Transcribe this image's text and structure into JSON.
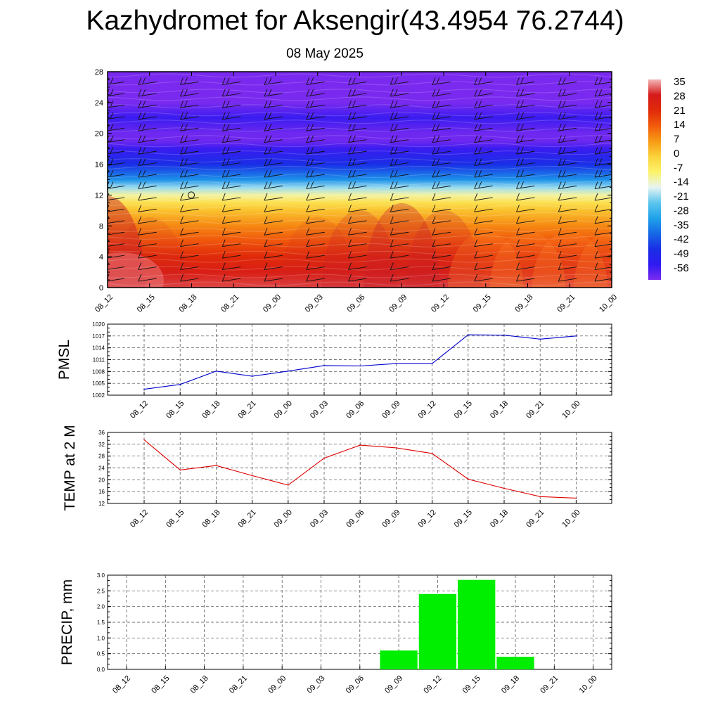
{
  "title": "Kazhydromet for Aksengir(43.4954 76.2744)",
  "date": "08 May 2025",
  "time_labels": [
    "08_12",
    "08_15",
    "08_18",
    "08_21",
    "09_00",
    "09_03",
    "09_06",
    "09_09",
    "09_12",
    "09_15",
    "09_18",
    "09_21",
    "10_00"
  ],
  "colorbar": {
    "labels": [
      "35",
      "28",
      "21",
      "14",
      "7",
      "0",
      "-7",
      "-14",
      "-21",
      "-28",
      "-35",
      "-42",
      "-49",
      "-56"
    ],
    "stops": [
      {
        "v": 35,
        "c": "#f3b7b7"
      },
      {
        "v": 28,
        "c": "#d61a1a"
      },
      {
        "v": 21,
        "c": "#e02a0a"
      },
      {
        "v": 14,
        "c": "#f25b0c"
      },
      {
        "v": 7,
        "c": "#f79a14"
      },
      {
        "v": 0,
        "c": "#fbd23a"
      },
      {
        "v": -7,
        "c": "#fcf36a"
      },
      {
        "v": -14,
        "c": "#e6f4f2"
      },
      {
        "v": -21,
        "c": "#5cc6ee"
      },
      {
        "v": -28,
        "c": "#1fa2ea"
      },
      {
        "v": -35,
        "c": "#1668e6"
      },
      {
        "v": -42,
        "c": "#1a2ee6"
      },
      {
        "v": -49,
        "c": "#2e1af0"
      },
      {
        "v": -56,
        "c": "#7a2aef"
      }
    ]
  },
  "chart_data": [
    {
      "type": "heatmap",
      "title": "Kazhydromet for Aksengir(43.4954 76.2744)",
      "subtitle": "08 May 2025",
      "x": [
        "08_12",
        "08_15",
        "08_18",
        "08_21",
        "09_00",
        "09_03",
        "09_06",
        "09_09",
        "09_12",
        "09_15",
        "09_18",
        "09_21",
        "10_00"
      ],
      "y_ticks": [
        0,
        4,
        8,
        12,
        16,
        20,
        24,
        28
      ],
      "ylim": [
        0,
        28
      ],
      "value_range": [
        -56,
        35
      ],
      "levels": [
        0,
        2,
        4,
        6,
        8,
        10,
        11,
        12,
        13,
        14,
        16,
        18,
        19,
        20,
        22,
        24,
        26,
        28
      ],
      "profile": [
        30,
        26,
        21,
        15,
        9,
        2,
        -3,
        -10,
        -18,
        -30,
        -42,
        -50,
        -55,
        -55,
        -50,
        -57,
        -60,
        -60
      ],
      "surface_anomaly": [
        4,
        1,
        0,
        0,
        0,
        1,
        2,
        3,
        2,
        -1,
        -1,
        -1,
        -1
      ],
      "grid": false
    },
    {
      "type": "line",
      "ylabel": "PMSL",
      "x": [
        "08_12",
        "08_15",
        "08_18",
        "08_21",
        "09_00",
        "09_03",
        "09_06",
        "09_09",
        "09_12",
        "09_15",
        "09_18",
        "09_21",
        "10_00"
      ],
      "series": [
        {
          "values": [
            1003.5,
            1004.7,
            1008.1,
            1006.8,
            1008.1,
            1009.5,
            1009.4,
            1010.0,
            1010.0,
            1017.3,
            1017.2,
            1016.2,
            1017.0
          ],
          "color": "#0000cc"
        }
      ],
      "ylim": [
        1002,
        1020
      ],
      "yticks": [
        1002,
        1005,
        1008,
        1011,
        1014,
        1017,
        1020
      ],
      "grid": true
    },
    {
      "type": "line",
      "ylabel": "TEMP at 2 M",
      "x": [
        "08_12",
        "08_15",
        "08_18",
        "08_21",
        "09_00",
        "09_03",
        "09_06",
        "09_09",
        "09_12",
        "09_15",
        "09_18",
        "09_21",
        "10_00"
      ],
      "series": [
        {
          "values": [
            33.5,
            23.3,
            24.8,
            21.4,
            18.2,
            27.3,
            31.7,
            30.8,
            28.9,
            20.2,
            17.1,
            14.3,
            13.8
          ],
          "color": "#e00000"
        }
      ],
      "ylim": [
        12,
        36
      ],
      "yticks": [
        12,
        16,
        20,
        24,
        28,
        32,
        36
      ],
      "grid": true
    },
    {
      "type": "bar",
      "ylabel": "PRECIP, mm",
      "x": [
        "08_12",
        "08_15",
        "08_18",
        "08_21",
        "09_00",
        "09_03",
        "09_06",
        "09_09",
        "09_12",
        "09_15",
        "09_18",
        "09_21",
        "10_00"
      ],
      "values": [
        0,
        0,
        0,
        0,
        0,
        0,
        0,
        0.6,
        2.4,
        2.85,
        0.4,
        0,
        0
      ],
      "color": "#00ee00",
      "ylim": [
        0,
        3.0
      ],
      "yticks": [
        "0.0",
        "0.5",
        "1.0",
        "1.5",
        "2.0",
        "2.5",
        "3.0"
      ],
      "grid": true
    }
  ]
}
